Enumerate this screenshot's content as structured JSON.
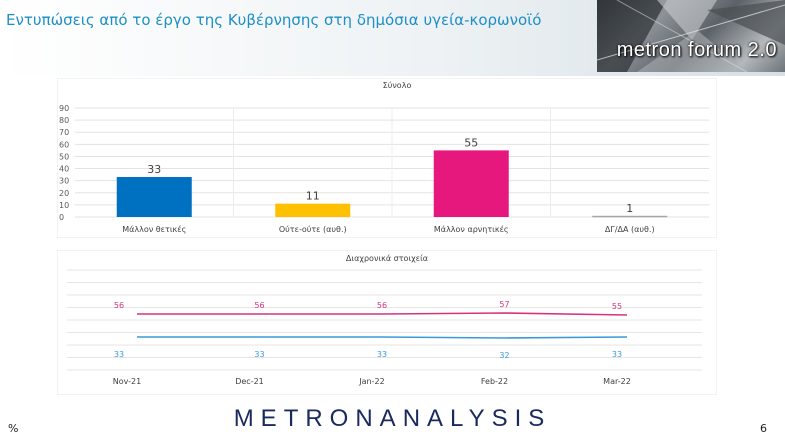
{
  "header": {
    "title": "Εντυπώσεις από το έργο της Κυβέρνησης στη δημόσια υγεία-κορωνοϊό",
    "logo_text": "metron forum 2.0",
    "title_color": "#1e8fc6"
  },
  "chart_data": [
    {
      "type": "bar",
      "title": "Σύνολο",
      "categories": [
        "Μάλλον θετικές",
        "Ούτε-ούτε (αυθ.)",
        "Μάλλον αρνητικές",
        "ΔΓ/ΔΑ (αυθ.)"
      ],
      "values": [
        33,
        11,
        55,
        1
      ],
      "colors": [
        "#0070c0",
        "#ffc000",
        "#e6177d",
        "#a6a6a6"
      ],
      "yticks": [
        0,
        10,
        20,
        30,
        40,
        50,
        60,
        70,
        80,
        90
      ],
      "ylim": [
        0,
        90
      ],
      "grid": true
    },
    {
      "type": "line",
      "title": "Διαχρονικά στοιχεία",
      "x": [
        "Nov-21",
        "Dec-21",
        "Jan-22",
        "Feb-22",
        "Mar-22"
      ],
      "series": [
        {
          "values": [
            56,
            56,
            56,
            57,
            55
          ],
          "color": "#d6337e"
        },
        {
          "values": [
            33,
            33,
            33,
            32,
            33
          ],
          "color": "#3a9ad9"
        }
      ],
      "ylim": [
        0,
        100
      ],
      "grid": true
    }
  ],
  "footer": {
    "brand": "METRONANALYSIS",
    "percent_sign": "%",
    "page_number": "6"
  }
}
